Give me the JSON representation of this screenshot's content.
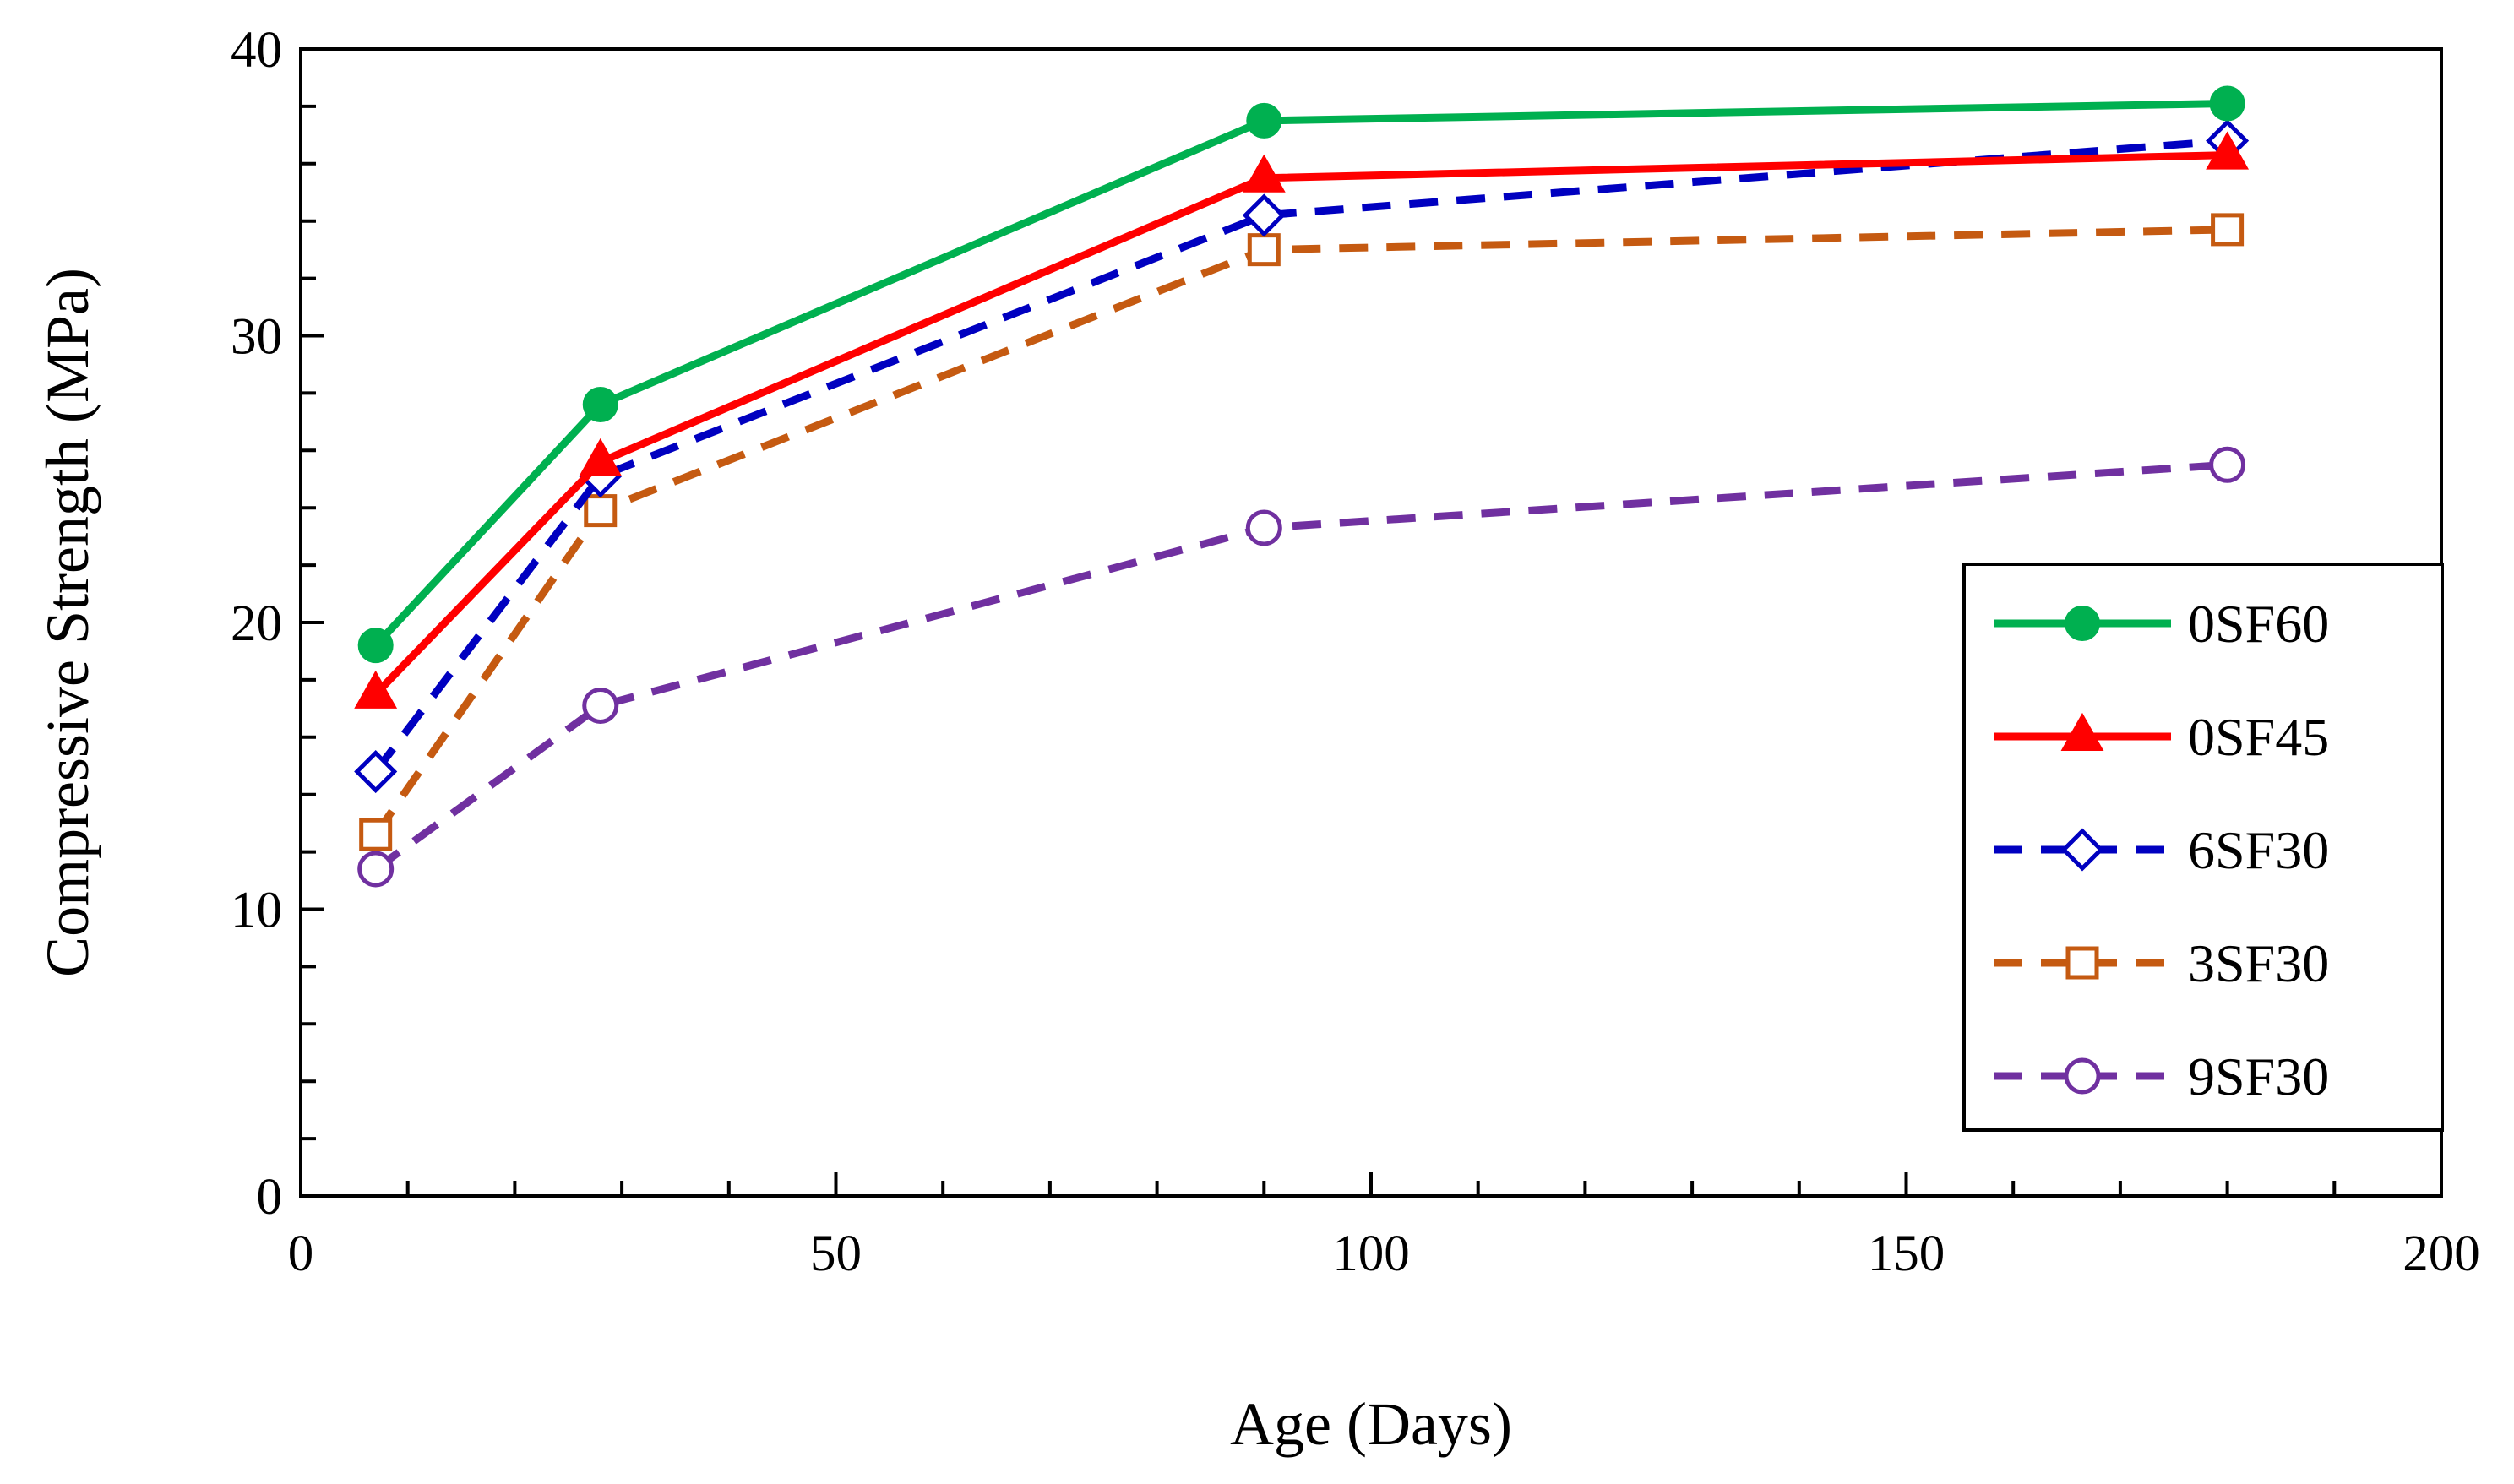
{
  "chart_data": {
    "type": "line",
    "title": "",
    "xlabel": "Age (Days)",
    "ylabel": "Compressive Strength (MPa)",
    "xlim": [
      0,
      200
    ],
    "ylim": [
      0,
      40
    ],
    "xticks": [
      0,
      50,
      100,
      150,
      200
    ],
    "yticks": [
      0,
      10,
      20,
      30,
      40
    ],
    "x_minor_step": 10,
    "y_minor_step": 2,
    "grid": false,
    "legend_position": "right",
    "x": [
      7,
      28,
      90,
      180
    ],
    "series": [
      {
        "name": "0SF60",
        "values": [
          19.2,
          27.6,
          37.5,
          38.1
        ],
        "color": "#00b050",
        "marker": "circle-filled",
        "dash": "solid"
      },
      {
        "name": "0SF45",
        "values": [
          17.5,
          25.6,
          35.5,
          36.3
        ],
        "color": "#ff0000",
        "marker": "triangle-filled",
        "dash": "solid"
      },
      {
        "name": "6SF30",
        "values": [
          14.8,
          25.1,
          34.2,
          36.8
        ],
        "color": "#0000c0",
        "marker": "diamond-open",
        "dash": "dashed"
      },
      {
        "name": "3SF30",
        "values": [
          12.6,
          23.9,
          33.0,
          33.7
        ],
        "color": "#c55a11",
        "marker": "square-open",
        "dash": "dashed"
      },
      {
        "name": "9SF30",
        "values": [
          11.4,
          17.1,
          23.3,
          25.5
        ],
        "color": "#7030a0",
        "marker": "circle-open",
        "dash": "dashed"
      }
    ]
  }
}
